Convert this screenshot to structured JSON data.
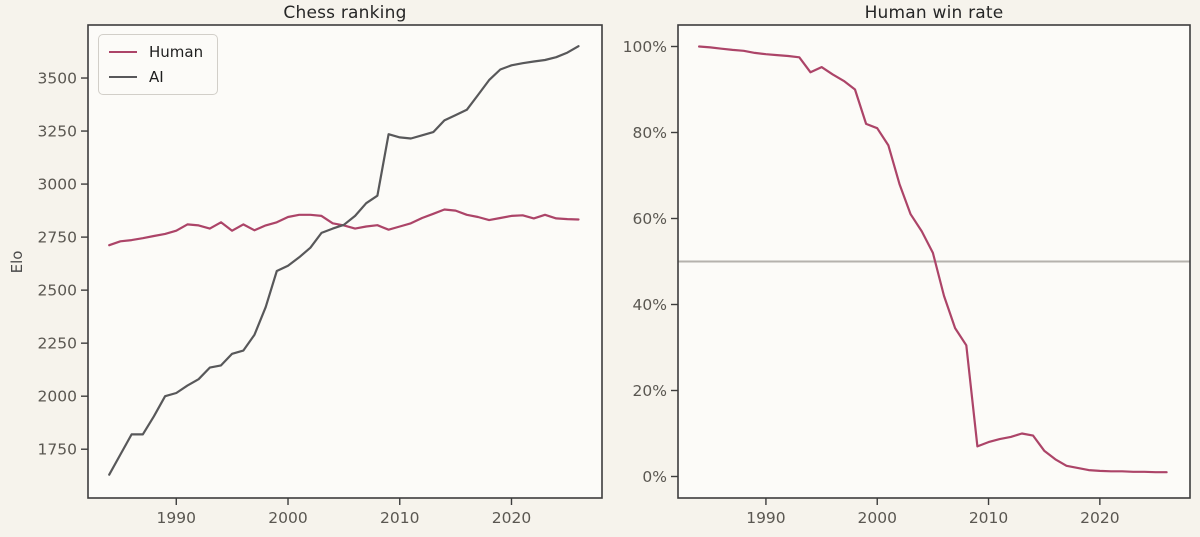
{
  "page": {
    "background": "#f6f3ec"
  },
  "figure_style": {
    "panel_background": "#fcfbf8",
    "spine_color": "#3d3d3d",
    "tick_color": "#3d3d3d",
    "tick_label_color": "#5a5751",
    "title_color": "#262626"
  },
  "chart_data": [
    {
      "type": "line",
      "title": "Chess ranking",
      "xlabel": "",
      "ylabel": "Elo",
      "grid": false,
      "legend_position": "upper left",
      "x": [
        1984,
        1985,
        1986,
        1987,
        1988,
        1989,
        1990,
        1991,
        1992,
        1993,
        1994,
        1995,
        1996,
        1997,
        1998,
        1999,
        2000,
        2001,
        2002,
        2003,
        2004,
        2005,
        2006,
        2007,
        2008,
        2009,
        2010,
        2011,
        2012,
        2013,
        2014,
        2015,
        2016,
        2017,
        2018,
        2019,
        2020,
        2021,
        2022,
        2023,
        2024,
        2025,
        2026
      ],
      "series": [
        {
          "name": "Human",
          "color": "#ac4468",
          "values": [
            2712,
            2730,
            2736,
            2745,
            2755,
            2765,
            2780,
            2810,
            2805,
            2790,
            2820,
            2780,
            2810,
            2782,
            2805,
            2820,
            2845,
            2855,
            2855,
            2850,
            2815,
            2805,
            2790,
            2800,
            2806,
            2785,
            2800,
            2815,
            2840,
            2860,
            2880,
            2875,
            2855,
            2845,
            2830,
            2840,
            2850,
            2853,
            2838,
            2855,
            2838,
            2835,
            2833
          ]
        },
        {
          "name": "AI",
          "color": "#58585a",
          "values": [
            1630,
            1725,
            1820,
            1820,
            1905,
            2000,
            2015,
            2050,
            2080,
            2135,
            2145,
            2200,
            2215,
            2290,
            2420,
            2590,
            2615,
            2655,
            2700,
            2770,
            2790,
            2808,
            2850,
            2910,
            2945,
            3235,
            3220,
            3215,
            3230,
            3245,
            3300,
            3325,
            3350,
            3420,
            3490,
            3540,
            3560,
            3570,
            3578,
            3585,
            3598,
            3620,
            3650
          ]
        }
      ],
      "xticks": [
        1990,
        2000,
        2010,
        2020
      ],
      "yticks": [
        1750,
        2000,
        2250,
        2500,
        2750,
        3000,
        3250,
        3500
      ],
      "xlim": [
        1982.1,
        2028.1
      ],
      "ylim": [
        1520,
        3750
      ],
      "ytick_suffix": ""
    },
    {
      "type": "line",
      "title": "Human win rate",
      "xlabel": "",
      "ylabel": "",
      "grid": false,
      "x": [
        1984,
        1985,
        1986,
        1987,
        1988,
        1989,
        1990,
        1991,
        1992,
        1993,
        1994,
        1995,
        1996,
        1997,
        1998,
        1999,
        2000,
        2001,
        2002,
        2003,
        2004,
        2005,
        2006,
        2007,
        2008,
        2009,
        2010,
        2011,
        2012,
        2013,
        2014,
        2015,
        2016,
        2017,
        2018,
        2019,
        2020,
        2021,
        2022,
        2023,
        2024,
        2025,
        2026
      ],
      "series": [
        {
          "name": "Human win rate",
          "color": "#ac4468",
          "values": [
            100,
            99.8,
            99.5,
            99.2,
            99,
            98.5,
            98.2,
            98,
            97.8,
            97.5,
            94,
            95.2,
            93.5,
            92,
            90,
            82,
            81,
            77,
            68,
            61,
            57,
            52,
            42,
            34.5,
            30.5,
            7,
            8,
            8.7,
            9.2,
            10,
            9.5,
            6,
            4,
            2.5,
            2,
            1.5,
            1.3,
            1.2,
            1.2,
            1.1,
            1.1,
            1,
            1
          ]
        }
      ],
      "reference_line": {
        "y": 50,
        "color": "#b5b2ad"
      },
      "xticks": [
        1990,
        2000,
        2010,
        2020
      ],
      "yticks": [
        0,
        20,
        40,
        60,
        80,
        100
      ],
      "xlim": [
        1982.1,
        2028.1
      ],
      "ylim": [
        -5,
        105
      ],
      "ytick_suffix": "%"
    }
  ]
}
